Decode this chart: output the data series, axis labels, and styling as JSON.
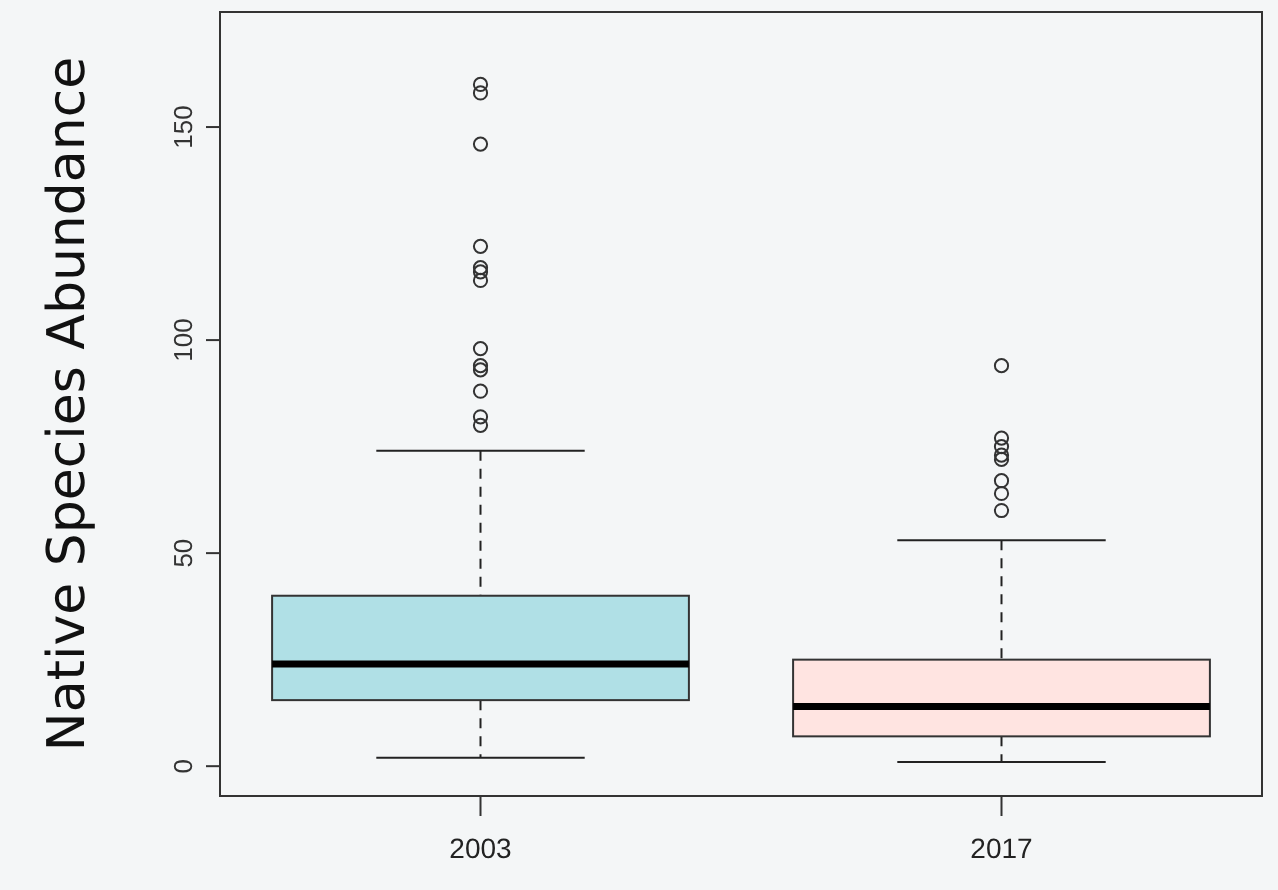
{
  "chart_data": {
    "type": "box",
    "ylabel": "Native Species Abundance",
    "categories": [
      "2003",
      "2017"
    ],
    "colors": [
      "#b0e0e6",
      "#ffe4e1"
    ],
    "boxes": [
      {
        "low": 2,
        "q1": 15.5,
        "median": 24,
        "q3": 40,
        "high": 74,
        "outliers": [
          80,
          82,
          88,
          93,
          94,
          98,
          114,
          116,
          117,
          122,
          146,
          158,
          160
        ]
      },
      {
        "low": 1,
        "q1": 7,
        "median": 14,
        "q3": 25,
        "high": 53,
        "outliers": [
          60,
          64,
          67,
          72,
          73,
          75,
          77,
          94
        ]
      }
    ],
    "ylim": [
      -7,
      177
    ],
    "yticks": [
      0,
      50,
      100,
      150
    ],
    "grid": false
  }
}
